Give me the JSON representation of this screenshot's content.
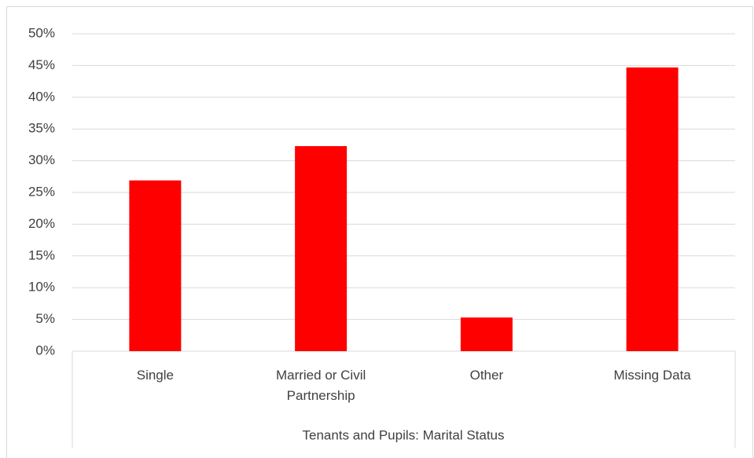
{
  "chart_data": {
    "type": "bar",
    "xlabel": "Tenants and Pupils: Marital Status",
    "categories": [
      "Single",
      "Married or Civil Partnership",
      "Other",
      "Missing Data"
    ],
    "values": [
      26.9,
      32.3,
      5.3,
      44.7
    ],
    "color": "#ff0000",
    "ylim": [
      0,
      50
    ],
    "yticks": [
      {
        "value": 0,
        "label": "0%"
      },
      {
        "value": 5,
        "label": "5%"
      },
      {
        "value": 10,
        "label": "10%"
      },
      {
        "value": 15,
        "label": "15%"
      },
      {
        "value": 20,
        "label": "20%"
      },
      {
        "value": 25,
        "label": "25%"
      },
      {
        "value": 30,
        "label": "30%"
      },
      {
        "value": 35,
        "label": "35%"
      },
      {
        "value": 40,
        "label": "40%"
      },
      {
        "value": 45,
        "label": "45%"
      },
      {
        "value": 50,
        "label": "50%"
      }
    ],
    "grid": true
  }
}
